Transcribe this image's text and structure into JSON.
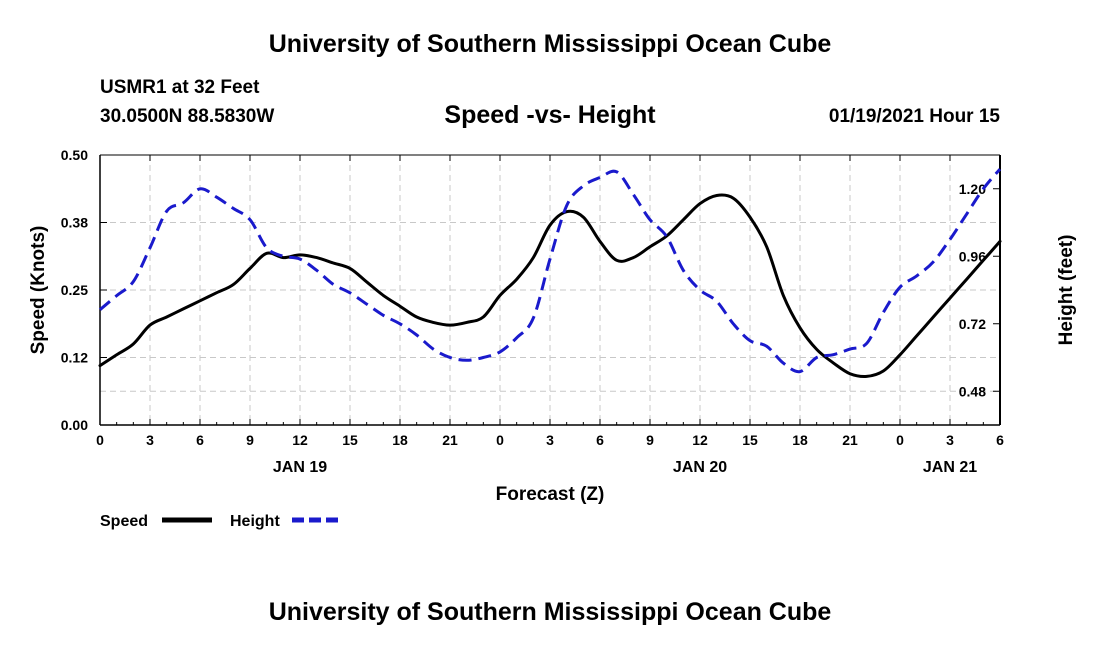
{
  "header": {
    "title": "University of Southern Mississippi Ocean Cube",
    "station": "USMR1 at 32 Feet",
    "coords": "30.0500N 88.5830W",
    "chart_title": "Speed -vs- Height",
    "date": "01/19/2021 Hour 15"
  },
  "footer": {
    "title": "University of Southern Mississippi Ocean Cube"
  },
  "colors": {
    "speed": "#000000",
    "height": "#1a1acc",
    "grid": "#c8c8c8"
  },
  "chart_data": {
    "type": "line",
    "title": "Speed -vs- Height",
    "xlabel": "Forecast (Z)",
    "ylabel_left": "Speed (Knots)",
    "ylabel_right": "Height (feet)",
    "x_range": [
      0,
      54
    ],
    "x_ticks": [
      0,
      3,
      6,
      9,
      12,
      15,
      18,
      21,
      24,
      27,
      30,
      33,
      36,
      39,
      42,
      45,
      48,
      51,
      54
    ],
    "x_tick_labels": [
      "0",
      "3",
      "6",
      "9",
      "12",
      "15",
      "18",
      "21",
      "0",
      "3",
      "6",
      "9",
      "12",
      "15",
      "18",
      "21",
      "0",
      "3",
      "6"
    ],
    "date_labels": [
      {
        "label": "JAN 19",
        "hour": 12
      },
      {
        "label": "JAN 20",
        "hour": 36
      },
      {
        "label": "JAN 21",
        "hour": 51
      }
    ],
    "y_left_range": [
      0,
      0.5
    ],
    "y_left_ticks": [
      0,
      0.125,
      0.25,
      0.375,
      0.5
    ],
    "y_left_tick_labels": [
      "0.00",
      "0.12",
      "0.25",
      "0.38",
      "0.50"
    ],
    "y_right_range": [
      0.36,
      1.32
    ],
    "y_right_ticks": [
      0.48,
      0.72,
      0.96,
      1.2
    ],
    "y_right_tick_labels": [
      "0.48",
      "0.72",
      "0.96",
      "1.20"
    ],
    "grid": true,
    "legend_position": "bottom-left",
    "series": [
      {
        "name": "Speed",
        "axis": "left",
        "style": "solid",
        "x": [
          0,
          1,
          2,
          3,
          4,
          5,
          6,
          7,
          8,
          9,
          10,
          11,
          12,
          13,
          14,
          15,
          16,
          17,
          18,
          19,
          20,
          21,
          22,
          23,
          24,
          25,
          26,
          27,
          28,
          29,
          30,
          31,
          32,
          33,
          34,
          35,
          36,
          37,
          38,
          39,
          40,
          41,
          42,
          43,
          44,
          45,
          46,
          47,
          48,
          49,
          50,
          51,
          52,
          53,
          54
        ],
        "values": [
          0.11,
          0.13,
          0.15,
          0.185,
          0.2,
          0.215,
          0.23,
          0.245,
          0.26,
          0.29,
          0.318,
          0.31,
          0.315,
          0.31,
          0.3,
          0.29,
          0.265,
          0.24,
          0.22,
          0.2,
          0.19,
          0.185,
          0.19,
          0.2,
          0.24,
          0.27,
          0.31,
          0.37,
          0.395,
          0.385,
          0.34,
          0.305,
          0.31,
          0.33,
          0.35,
          0.38,
          0.41,
          0.425,
          0.42,
          0.385,
          0.33,
          0.24,
          0.18,
          0.14,
          0.115,
          0.095,
          0.09,
          0.1,
          0.13,
          0.165,
          0.2,
          0.235,
          0.27,
          0.305,
          0.34
        ]
      },
      {
        "name": "Height",
        "axis": "right",
        "style": "dashed",
        "x": [
          0,
          1,
          2,
          3,
          4,
          5,
          6,
          7,
          8,
          9,
          10,
          11,
          12,
          13,
          14,
          15,
          16,
          17,
          18,
          19,
          20,
          21,
          22,
          23,
          24,
          25,
          26,
          27,
          28,
          29,
          30,
          31,
          32,
          33,
          34,
          35,
          36,
          37,
          38,
          39,
          40,
          41,
          42,
          43,
          44,
          45,
          46,
          47,
          48,
          49,
          50,
          51,
          52,
          53,
          54
        ],
        "values": [
          0.77,
          0.82,
          0.87,
          0.99,
          1.12,
          1.15,
          1.2,
          1.17,
          1.13,
          1.09,
          0.99,
          0.96,
          0.95,
          0.91,
          0.86,
          0.83,
          0.79,
          0.75,
          0.72,
          0.68,
          0.63,
          0.6,
          0.59,
          0.6,
          0.62,
          0.67,
          0.74,
          0.95,
          1.14,
          1.21,
          1.24,
          1.26,
          1.18,
          1.09,
          1.03,
          0.91,
          0.84,
          0.8,
          0.72,
          0.66,
          0.64,
          0.58,
          0.55,
          0.6,
          0.61,
          0.63,
          0.65,
          0.76,
          0.85,
          0.89,
          0.94,
          1.02,
          1.11,
          1.2,
          1.27
        ]
      }
    ]
  }
}
